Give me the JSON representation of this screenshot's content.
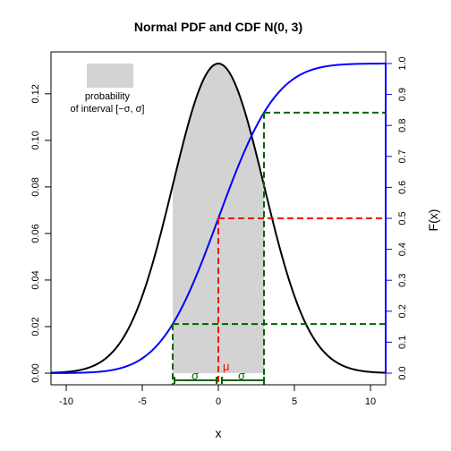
{
  "chart_data": {
    "type": "line",
    "title": "Normal PDF and CDF N(0, 3)",
    "xlabel": "x",
    "ylabel_right": "F(x)",
    "xlim": [
      -11,
      11
    ],
    "ylim_left": [
      0,
      0.133
    ],
    "ylim_right": [
      0,
      1
    ],
    "x_ticks": [
      -10,
      -5,
      0,
      5,
      10
    ],
    "y_ticks_left": [
      0.0,
      0.02,
      0.04,
      0.06,
      0.08,
      0.1,
      0.12
    ],
    "y_ticks_right": [
      0.0,
      0.1,
      0.2,
      0.3,
      0.4,
      0.5,
      0.6,
      0.7,
      0.8,
      0.9,
      1.0
    ],
    "distribution": {
      "mean": 0,
      "sd": 3
    },
    "series": [
      {
        "name": "PDF",
        "axis": "left",
        "color": "#000000"
      },
      {
        "name": "CDF",
        "axis": "right",
        "color": "#0000ff"
      }
    ],
    "shaded_interval": [
      -3,
      3
    ],
    "shade_color": "#d3d3d3",
    "cdf_levels": [
      0.1587,
      0.5,
      0.8413
    ],
    "legend": {
      "label_line1": "probability",
      "label_line2": "of interval [−σ, σ]",
      "placement": "top-left"
    },
    "annotations": {
      "mu": "μ",
      "sigma_left": "σ",
      "sigma_right": "σ",
      "mu_color": "#ff0000",
      "sigma_color": "#006400"
    }
  }
}
